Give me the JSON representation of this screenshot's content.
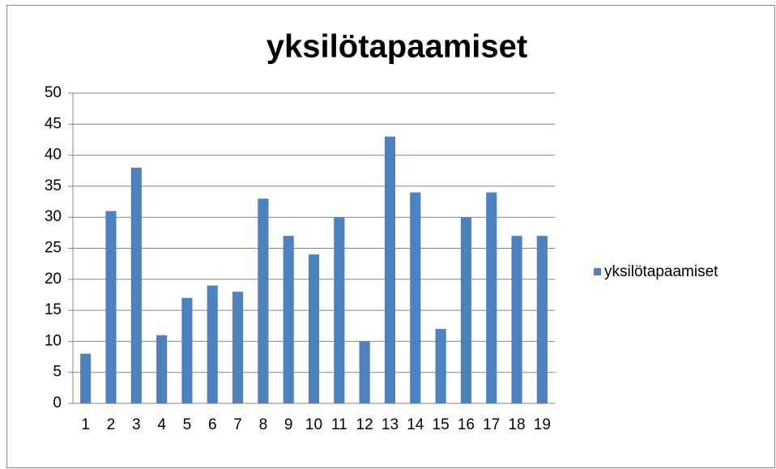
{
  "chart_data": {
    "type": "bar",
    "title": "yksilötapaamiset",
    "categories": [
      "1",
      "2",
      "3",
      "4",
      "5",
      "6",
      "7",
      "8",
      "9",
      "10",
      "11",
      "12",
      "13",
      "14",
      "15",
      "16",
      "17",
      "18",
      "19"
    ],
    "series": [
      {
        "name": "yksilötapaamiset",
        "color": "#4f81bd",
        "values": [
          8,
          31,
          38,
          11,
          17,
          19,
          18,
          33,
          27,
          24,
          30,
          10,
          43,
          34,
          12,
          30,
          34,
          27,
          27
        ]
      }
    ],
    "ylim": [
      0,
      50
    ],
    "yticks": [
      0,
      5,
      10,
      15,
      20,
      25,
      30,
      35,
      40,
      45,
      50
    ],
    "grid": true,
    "legend": "right"
  }
}
